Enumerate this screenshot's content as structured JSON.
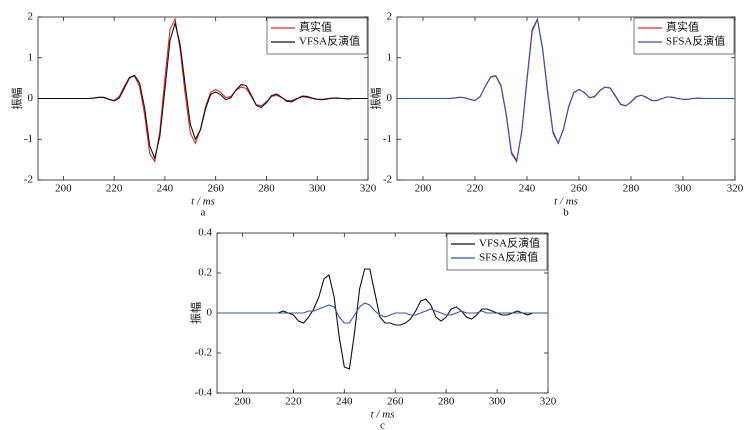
{
  "chart_data": [
    {
      "type": "line",
      "caption": "a",
      "xlabel": "t / ms",
      "ylabel": "振幅",
      "x": [
        190,
        192,
        194,
        196,
        198,
        200,
        202,
        204,
        206,
        208,
        210,
        212,
        214,
        216,
        218,
        220,
        222,
        224,
        226,
        228,
        230,
        232,
        234,
        236,
        238,
        240,
        242,
        244,
        246,
        248,
        250,
        252,
        254,
        256,
        258,
        260,
        262,
        264,
        266,
        268,
        270,
        272,
        274,
        276,
        278,
        280,
        282,
        284,
        286,
        288,
        290,
        292,
        294,
        296,
        298,
        300,
        302,
        304,
        306,
        308,
        310,
        312,
        314,
        316,
        318,
        320
      ],
      "series": [
        {
          "name": "真实值",
          "color": "#d42a2a",
          "values": [
            0,
            0,
            0,
            0,
            0,
            0,
            0,
            0,
            0,
            0,
            0,
            0.01,
            0.03,
            0.02,
            -0.02,
            -0.05,
            0.05,
            0.3,
            0.52,
            0.55,
            0.3,
            -0.4,
            -1.35,
            -1.55,
            -0.8,
            0.5,
            1.7,
            1.95,
            1.2,
            0.1,
            -0.85,
            -1.1,
            -0.75,
            -0.2,
            0.15,
            0.22,
            0.15,
            0.02,
            0.05,
            0.2,
            0.28,
            0.25,
            0.05,
            -0.15,
            -0.18,
            -0.08,
            0.05,
            0.08,
            0.02,
            -0.05,
            -0.05,
            0,
            0.04,
            0.03,
            0,
            -0.02,
            -0.02,
            0,
            0.01,
            0,
            0,
            0,
            0,
            0,
            0,
            0
          ]
        },
        {
          "name": "VFSA反演值",
          "color": "#111111",
          "values": [
            0,
            0,
            0,
            0,
            0,
            0,
            0,
            0,
            0,
            0,
            0,
            0.01,
            0.03,
            0.03,
            -0.02,
            -0.06,
            0.01,
            0.25,
            0.5,
            0.57,
            0.38,
            -0.23,
            -1.16,
            -1.47,
            -0.92,
            0.23,
            1.42,
            1.85,
            1.32,
            0.32,
            -0.63,
            -1.0,
            -0.77,
            -0.25,
            0.1,
            0.16,
            0.09,
            -0.03,
            0.02,
            0.21,
            0.34,
            0.32,
            0.09,
            -0.17,
            -0.22,
            -0.1,
            0.07,
            0.11,
            0.03,
            -0.07,
            -0.08,
            -0.01,
            0.06,
            0.05,
            0.01,
            -0.02,
            -0.03,
            -0.01,
            0.01,
            0.01,
            0,
            -0.01,
            0,
            0,
            0,
            0
          ]
        }
      ],
      "xlim": [
        190,
        320
      ],
      "xticks": [
        200,
        220,
        240,
        260,
        280,
        300,
        320
      ],
      "ylim": [
        -2,
        2
      ],
      "yticks": [
        -2,
        -1,
        0,
        1,
        2
      ],
      "legend": "upper right"
    },
    {
      "type": "line",
      "caption": "b",
      "xlabel": "t / ms",
      "ylabel": "振幅",
      "x": [
        190,
        192,
        194,
        196,
        198,
        200,
        202,
        204,
        206,
        208,
        210,
        212,
        214,
        216,
        218,
        220,
        222,
        224,
        226,
        228,
        230,
        232,
        234,
        236,
        238,
        240,
        242,
        244,
        246,
        248,
        250,
        252,
        254,
        256,
        258,
        260,
        262,
        264,
        266,
        268,
        270,
        272,
        274,
        276,
        278,
        280,
        282,
        284,
        286,
        288,
        290,
        292,
        294,
        296,
        298,
        300,
        302,
        304,
        306,
        308,
        310,
        312,
        314,
        316,
        318,
        320
      ],
      "series": [
        {
          "name": "真实值",
          "color": "#d42a2a",
          "values": [
            0,
            0,
            0,
            0,
            0,
            0,
            0,
            0,
            0,
            0,
            0,
            0.01,
            0.03,
            0.02,
            -0.02,
            -0.05,
            0.05,
            0.3,
            0.52,
            0.55,
            0.3,
            -0.4,
            -1.35,
            -1.55,
            -0.8,
            0.5,
            1.7,
            1.95,
            1.2,
            0.1,
            -0.85,
            -1.1,
            -0.75,
            -0.2,
            0.15,
            0.22,
            0.15,
            0.02,
            0.05,
            0.2,
            0.28,
            0.25,
            0.05,
            -0.15,
            -0.18,
            -0.08,
            0.05,
            0.08,
            0.02,
            -0.05,
            -0.05,
            0,
            0.04,
            0.03,
            0,
            -0.02,
            -0.02,
            0,
            0.01,
            0,
            0,
            0,
            0,
            0,
            0,
            0
          ]
        },
        {
          "name": "SFSA反演值",
          "color": "#3553b5",
          "values": [
            0,
            0,
            0,
            0,
            0,
            0,
            0,
            0,
            0,
            0,
            0,
            0.01,
            0.03,
            0.02,
            -0.02,
            -0.05,
            0.05,
            0.3,
            0.53,
            0.56,
            0.32,
            -0.37,
            -1.31,
            -1.52,
            -0.82,
            0.45,
            1.65,
            1.94,
            1.23,
            0.15,
            -0.81,
            -1.09,
            -0.76,
            -0.22,
            0.14,
            0.22,
            0.15,
            0.02,
            0.04,
            0.19,
            0.28,
            0.26,
            0.07,
            -0.14,
            -0.18,
            -0.09,
            0.04,
            0.08,
            0.03,
            -0.05,
            -0.05,
            0,
            0.04,
            0.03,
            0,
            -0.02,
            -0.02,
            0,
            0.01,
            0,
            0,
            0,
            0,
            0,
            0,
            0
          ]
        }
      ],
      "xlim": [
        190,
        320
      ],
      "xticks": [
        200,
        220,
        240,
        260,
        280,
        300,
        320
      ],
      "ylim": [
        -2,
        2
      ],
      "yticks": [
        -2,
        -1,
        0,
        1,
        2
      ],
      "legend": "upper right"
    },
    {
      "type": "line",
      "caption": "c",
      "xlabel": "t / ms",
      "ylabel": "振幅",
      "x": [
        190,
        192,
        194,
        196,
        198,
        200,
        202,
        204,
        206,
        208,
        210,
        212,
        214,
        216,
        218,
        220,
        222,
        224,
        226,
        228,
        230,
        232,
        234,
        236,
        238,
        240,
        242,
        244,
        246,
        248,
        250,
        252,
        254,
        256,
        258,
        260,
        262,
        264,
        266,
        268,
        270,
        272,
        274,
        276,
        278,
        280,
        282,
        284,
        286,
        288,
        290,
        292,
        294,
        296,
        298,
        300,
        302,
        304,
        306,
        308,
        310,
        312,
        314,
        316,
        318,
        320
      ],
      "series": [
        {
          "name": "VFSA反演值",
          "color": "#111111",
          "values": [
            0,
            0,
            0,
            0,
            0,
            0,
            0,
            0,
            0,
            0,
            0,
            0,
            0,
            0.01,
            0,
            -0.01,
            -0.04,
            -0.05,
            -0.02,
            0.02,
            0.08,
            0.17,
            0.19,
            0.08,
            -0.12,
            -0.27,
            -0.28,
            -0.1,
            0.12,
            0.22,
            0.22,
            0.1,
            -0.02,
            -0.05,
            -0.05,
            -0.06,
            -0.06,
            -0.05,
            -0.03,
            0.01,
            0.06,
            0.07,
            0.04,
            -0.02,
            -0.04,
            -0.02,
            0.02,
            0.03,
            0.01,
            -0.02,
            -0.03,
            -0.01,
            0.02,
            0.02,
            0.01,
            0,
            -0.01,
            -0.01,
            0,
            0.01,
            0,
            -0.01,
            0,
            0,
            0,
            0
          ]
        },
        {
          "name": "SFSA反演值",
          "color": "#3553b5",
          "values": [
            0,
            0,
            0,
            0,
            0,
            0,
            0,
            0,
            0,
            0,
            0,
            0,
            0,
            0,
            0,
            0,
            0,
            0,
            0.01,
            0.01,
            0.02,
            0.03,
            0.04,
            0.03,
            -0.02,
            -0.05,
            -0.05,
            -0.01,
            0.03,
            0.05,
            0.04,
            0.01,
            -0.01,
            -0.02,
            -0.01,
            0,
            0,
            0,
            -0.01,
            -0.01,
            0,
            0.01,
            0.02,
            0.01,
            0,
            -0.01,
            -0.01,
            0,
            0.01,
            0,
            0,
            0,
            0.01,
            0,
            0,
            0,
            0,
            0,
            0,
            0,
            0,
            0,
            0,
            0,
            0,
            0
          ]
        }
      ],
      "xlim": [
        190,
        320
      ],
      "xticks": [
        200,
        220,
        240,
        260,
        280,
        300,
        320
      ],
      "ylim": [
        -0.4,
        0.4
      ],
      "yticks": [
        -0.4,
        -0.2,
        0,
        0.2,
        0.4
      ],
      "legend": "upper right"
    }
  ]
}
